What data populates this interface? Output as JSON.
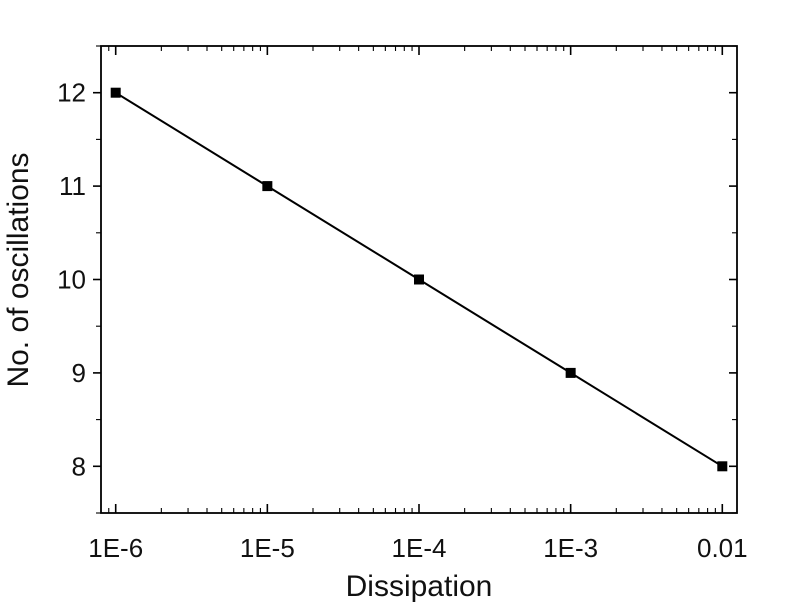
{
  "chart_data": {
    "type": "line",
    "title": "",
    "xlabel": "Dissipation",
    "ylabel": "No. of oscillations",
    "x_scale": "log",
    "x": [
      1e-06,
      1e-05,
      0.0001,
      0.001,
      0.01
    ],
    "series": [
      {
        "values": [
          12,
          11,
          10,
          9,
          8
        ],
        "marker": "square",
        "color": "#000000"
      }
    ],
    "xlim": [
      8e-07,
      0.0125
    ],
    "ylim": [
      7.5,
      12.5
    ],
    "x_ticks": [
      {
        "value": 1e-06,
        "label": "1E-6"
      },
      {
        "value": 1e-05,
        "label": "1E-5"
      },
      {
        "value": 0.0001,
        "label": "1E-4"
      },
      {
        "value": 0.001,
        "label": "1E-3"
      },
      {
        "value": 0.01,
        "label": "0.01"
      }
    ],
    "y_ticks": [
      {
        "value": 8,
        "label": "8"
      },
      {
        "value": 9,
        "label": "9"
      },
      {
        "value": 10,
        "label": "10"
      },
      {
        "value": 11,
        "label": "11"
      },
      {
        "value": 12,
        "label": "12"
      }
    ],
    "grid": false,
    "legend": "none"
  }
}
